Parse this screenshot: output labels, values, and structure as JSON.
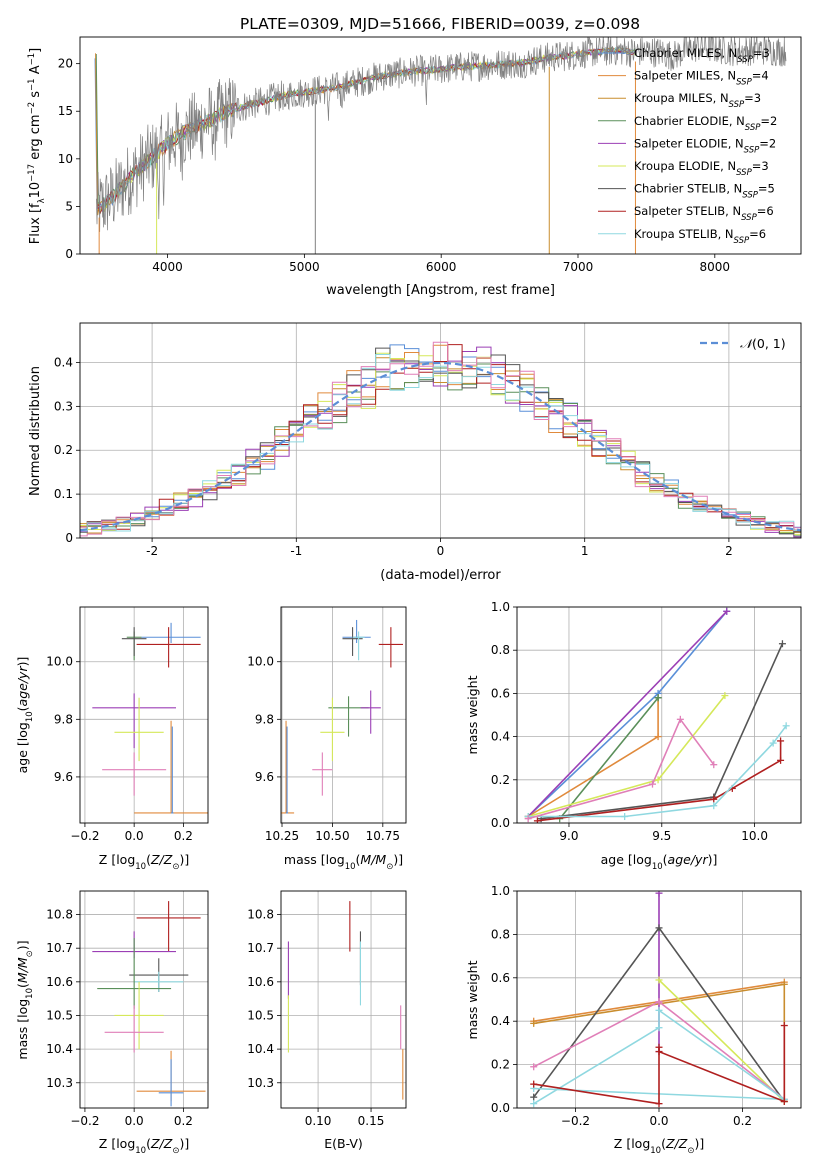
{
  "figure": {
    "title": "PLATE=0309, MJD=51666, FIBERID=0039, z=0.098"
  },
  "colors": {
    "spec_gray": "#808080",
    "grid": "#b0b0b0",
    "normal_dash": "#5b8ed6"
  },
  "chart_data": [
    {
      "id": "spectrum",
      "type": "line",
      "title": "PLATE=0309, MJD=51666, FIBERID=0039, z=0.098",
      "xlabel": "wavelength [Angstrom, rest frame]",
      "ylabel": "Flux [f_λ 10^-17 erg cm^-2 s^-1 A^-1]",
      "xlim": [
        3360,
        8630
      ],
      "ylim": [
        0,
        22.8
      ],
      "xticks": [
        4000,
        5000,
        6000,
        7000,
        8000
      ],
      "yticks": [
        0,
        5,
        10,
        15,
        20
      ],
      "grid": false,
      "legend": "right",
      "observed_continuum": [
        [
          3480,
          4.6
        ],
        [
          3550,
          5.4
        ],
        [
          3600,
          6.0
        ],
        [
          3700,
          7.6
        ],
        [
          3800,
          9.0
        ],
        [
          3900,
          10.3
        ],
        [
          4000,
          11.6
        ],
        [
          4100,
          12.6
        ],
        [
          4200,
          13.3
        ],
        [
          4300,
          14.0
        ],
        [
          4400,
          14.7
        ],
        [
          4500,
          15.2
        ],
        [
          4600,
          15.7
        ],
        [
          4700,
          16.0
        ],
        [
          4800,
          16.5
        ],
        [
          4900,
          16.8
        ],
        [
          5000,
          17.0
        ],
        [
          5100,
          17.2
        ],
        [
          5200,
          17.4
        ],
        [
          5300,
          17.7
        ],
        [
          5400,
          18.1
        ],
        [
          5500,
          18.5
        ],
        [
          5600,
          18.8
        ],
        [
          5700,
          19.0
        ],
        [
          5800,
          19.2
        ],
        [
          5900,
          19.3
        ],
        [
          6000,
          19.4
        ],
        [
          6100,
          19.6
        ],
        [
          6200,
          19.7
        ],
        [
          6300,
          19.8
        ],
        [
          6400,
          19.9
        ],
        [
          6500,
          20.0
        ],
        [
          6600,
          20.1
        ],
        [
          6700,
          20.4
        ],
        [
          6800,
          20.7
        ],
        [
          6900,
          20.8
        ],
        [
          7000,
          21.0
        ],
        [
          7100,
          21.2
        ],
        [
          7200,
          21.3
        ],
        [
          7300,
          21.4
        ],
        [
          7400,
          21.2
        ],
        [
          7500,
          21.3
        ],
        [
          7600,
          21.2
        ],
        [
          7700,
          20.8
        ],
        [
          7800,
          21.5
        ],
        [
          7900,
          21.8
        ],
        [
          8000,
          21.6
        ],
        [
          8100,
          21.4
        ],
        [
          8200,
          21.3
        ],
        [
          8300,
          21.5
        ],
        [
          8400,
          21.4
        ],
        [
          8500,
          21.3
        ],
        [
          8520,
          21.3
        ]
      ],
      "legend_entries": [
        {
          "label": "Chabrier MILES, N",
          "sub": "SSP",
          "tail": "=3",
          "color": "#5a8fd8"
        },
        {
          "label": "Salpeter MILES, N",
          "sub": "SSP",
          "tail": "=4",
          "color": "#e08a3c"
        },
        {
          "label": "Kroupa MILES, N",
          "sub": "SSP",
          "tail": "=3",
          "color": "#c98d2e"
        },
        {
          "label": "Chabrier ELODIE, N",
          "sub": "SSP",
          "tail": "=2",
          "color": "#5a8f5a"
        },
        {
          "label": "Salpeter ELODIE, N",
          "sub": "SSP",
          "tail": "=2",
          "color": "#9b3fb5"
        },
        {
          "label": "Kroupa ELODIE, N",
          "sub": "SSP",
          "tail": "=3",
          "color": "#d5e85a"
        },
        {
          "label": "Chabrier STELIB, N",
          "sub": "SSP",
          "tail": "=5",
          "color": "#555555"
        },
        {
          "label": "Salpeter STELIB, N",
          "sub": "SSP",
          "tail": "=6",
          "color": "#b02020"
        },
        {
          "label": "Kroupa STELIB, N",
          "sub": "SSP",
          "tail": "=6",
          "color": "#8fd8e0"
        }
      ]
    },
    {
      "id": "residual_hist",
      "type": "line",
      "xlabel": "(data-model)/error",
      "ylabel": "Normed distribution",
      "xlim": [
        -2.5,
        2.5
      ],
      "ylim": [
        0,
        0.49
      ],
      "xticks": [
        -2,
        -1,
        0,
        1,
        2
      ],
      "yticks": [
        0.0,
        0.1,
        0.2,
        0.3,
        0.4
      ],
      "grid": true,
      "legend": "top-right",
      "normal_label": "N(0,1)",
      "histogram_colors": [
        "#5a8fd8",
        "#e08a3c",
        "#c98d2e",
        "#5a8f5a",
        "#9b3fb5",
        "#d5e85a",
        "#555555",
        "#b02020",
        "#8fd8e0",
        "#e07fb8"
      ]
    },
    {
      "id": "age_vs_Z",
      "type": "scatter",
      "xlabel": "Z [log10(Z/Z☉)]",
      "ylabel": "age [log10(age/yr)]",
      "xlim": [
        -0.22,
        0.3
      ],
      "ylim": [
        9.44,
        10.19
      ],
      "xticks": [
        -0.2,
        0.0,
        0.2
      ],
      "xtick_labels": [
        "−0.2",
        "0.0",
        "0.2"
      ],
      "yticks": [
        9.6,
        9.8,
        10.0
      ],
      "ytick_labels": [
        "9.6",
        "9.8",
        "10.0"
      ],
      "grid": true,
      "points": [
        {
          "x": 0.15,
          "y": 10.085,
          "xerr": 0.12,
          "yerr_lo": 0.02,
          "yerr_hi": 0.05,
          "color": "#5a8fd8"
        },
        {
          "x": 0.0,
          "y": 10.085,
          "xerr": 0.03,
          "yerr_lo": 0.08,
          "yerr_hi": 0.02,
          "color": "#5a8f5a"
        },
        {
          "x": 0.14,
          "y": 10.06,
          "xerr": 0.13,
          "yerr_lo": 0.08,
          "yerr_hi": 0.06,
          "color": "#b02020"
        },
        {
          "x": 0.0,
          "y": 10.08,
          "xerr": 0.05,
          "yerr_lo": 0.06,
          "yerr_hi": 0.04,
          "color": "#555555"
        },
        {
          "x": 0.0,
          "y": 9.84,
          "xerr": 0.17,
          "yerr_lo": 0.14,
          "yerr_hi": 0.05,
          "color": "#9b3fb5"
        },
        {
          "x": 0.02,
          "y": 9.755,
          "xerr": 0.1,
          "yerr_lo": 0.1,
          "yerr_hi": 0.12,
          "color": "#d5e85a"
        },
        {
          "x": 0.0,
          "y": 9.625,
          "xerr": 0.13,
          "yerr_lo": 0.09,
          "yerr_hi": 0.06,
          "color": "#e07fb8"
        },
        {
          "x": 0.15,
          "y": 9.475,
          "xerr": 0.15,
          "yerr_lo": 0.0,
          "yerr_hi": 0.32,
          "color": "#e08a3c"
        },
        {
          "x": 0.155,
          "y": 9.475,
          "xerr": 0.005,
          "yerr_lo": 0.0,
          "yerr_hi": 0.3,
          "color": "#5a8fd8"
        }
      ]
    },
    {
      "id": "age_vs_mass",
      "type": "scatter",
      "xlabel": "mass [log10(M/M☉)]",
      "ylabel": "",
      "xlim": [
        10.245,
        10.865
      ],
      "ylim": [
        9.44,
        10.19
      ],
      "xticks": [
        10.25,
        10.5,
        10.75
      ],
      "xtick_labels": [
        "10.25",
        "10.50",
        "10.75"
      ],
      "yticks": [
        9.6,
        9.8,
        10.0
      ],
      "ytick_labels": [
        "9.6",
        "9.8",
        "10.0"
      ],
      "grid": true,
      "points": [
        {
          "x": 10.62,
          "y": 10.085,
          "xerr": 0.07,
          "yerr_lo": 0.02,
          "yerr_hi": 0.06,
          "color": "#5a8fd8"
        },
        {
          "x": 10.6,
          "y": 10.08,
          "xerr": 0.05,
          "yerr_lo": 0.06,
          "yerr_hi": 0.04,
          "color": "#555555"
        },
        {
          "x": 10.63,
          "y": 10.085,
          "xerr": 0.03,
          "yerr_lo": 0.08,
          "yerr_hi": 0.02,
          "color": "#8fd8e0"
        },
        {
          "x": 10.79,
          "y": 10.06,
          "xerr": 0.06,
          "yerr_lo": 0.08,
          "yerr_hi": 0.06,
          "color": "#b02020"
        },
        {
          "x": 10.58,
          "y": 9.84,
          "xerr": 0.1,
          "yerr_lo": 0.1,
          "yerr_hi": 0.04,
          "color": "#5a8f5a"
        },
        {
          "x": 10.69,
          "y": 9.84,
          "xerr": 0.05,
          "yerr_lo": 0.09,
          "yerr_hi": 0.06,
          "color": "#9b3fb5"
        },
        {
          "x": 10.5,
          "y": 9.755,
          "xerr": 0.06,
          "yerr_lo": 0.1,
          "yerr_hi": 0.12,
          "color": "#d5e85a"
        },
        {
          "x": 10.45,
          "y": 9.625,
          "xerr": 0.05,
          "yerr_lo": 0.09,
          "yerr_hi": 0.06,
          "color": "#e07fb8"
        },
        {
          "x": 10.27,
          "y": 9.475,
          "xerr": 0.04,
          "yerr_lo": 0.0,
          "yerr_hi": 0.32,
          "color": "#e08a3c"
        },
        {
          "x": 10.275,
          "y": 9.475,
          "xerr": 0.005,
          "yerr_lo": 0.0,
          "yerr_hi": 0.3,
          "color": "#5a8fd8"
        }
      ]
    },
    {
      "id": "weight_vs_age",
      "type": "line",
      "xlabel": "age [log10(age/yr)]",
      "ylabel": "mass weight",
      "xlim": [
        8.72,
        10.25
      ],
      "ylim": [
        0,
        1
      ],
      "xticks": [
        9.0,
        9.5,
        10.0
      ],
      "xtick_labels": [
        "9.0",
        "9.5",
        "10.0"
      ],
      "yticks": [
        0.0,
        0.2,
        0.4,
        0.6,
        0.8,
        1.0
      ],
      "ytick_labels": [
        "0.0",
        "0.2",
        "0.4",
        "0.6",
        "0.8",
        "1.0"
      ],
      "grid": true,
      "series": [
        {
          "color": "#5a8fd8",
          "x": [
            8.78,
            9.48,
            9.85
          ],
          "y": [
            0.03,
            0.6,
            0.98
          ]
        },
        {
          "color": "#e08a3c",
          "x": [
            8.78,
            9.48,
            9.48
          ],
          "y": [
            0.03,
            0.4,
            0.58
          ]
        },
        {
          "color": "#5a8f5a",
          "x": [
            8.95,
            9.48,
            9.48
          ],
          "y": [
            0.02,
            0.58,
            0.58
          ]
        },
        {
          "color": "#9b3fb5",
          "x": [
            8.78,
            9.85
          ],
          "y": [
            0.03,
            0.98
          ]
        },
        {
          "color": "#d5e85a",
          "x": [
            8.78,
            9.48,
            9.84
          ],
          "y": [
            0.03,
            0.2,
            0.59
          ]
        },
        {
          "color": "#555555",
          "x": [
            8.85,
            9.78,
            10.15
          ],
          "y": [
            0.02,
            0.12,
            0.83
          ]
        },
        {
          "color": "#b02020",
          "x": [
            8.83,
            9.78,
            9.88,
            10.14,
            10.14
          ],
          "y": [
            0.01,
            0.11,
            0.16,
            0.29,
            0.38
          ]
        },
        {
          "color": "#8fd8e0",
          "x": [
            8.78,
            9.3,
            9.78,
            10.1,
            10.17
          ],
          "y": [
            0.03,
            0.03,
            0.08,
            0.37,
            0.45
          ]
        },
        {
          "color": "#e07fb8",
          "x": [
            8.78,
            9.45,
            9.6,
            9.78
          ],
          "y": [
            0.02,
            0.18,
            0.48,
            0.27
          ]
        }
      ]
    },
    {
      "id": "mass_vs_Z",
      "type": "scatter",
      "xlabel": "Z [log10(Z/Z☉)]",
      "ylabel": "mass [log10(M/M☉)]",
      "xlim": [
        -0.22,
        0.3
      ],
      "ylim": [
        10.225,
        10.87
      ],
      "xticks": [
        -0.2,
        0.0,
        0.2
      ],
      "xtick_labels": [
        "−0.2",
        "0.0",
        "0.2"
      ],
      "yticks": [
        10.3,
        10.4,
        10.5,
        10.6,
        10.7,
        10.8
      ],
      "ytick_labels": [
        "10.3",
        "10.4",
        "10.5",
        "10.6",
        "10.7",
        "10.8"
      ],
      "grid": true,
      "points": [
        {
          "x": 0.14,
          "y": 10.79,
          "xerr": 0.13,
          "yerr_lo": 0.1,
          "yerr_hi": 0.05,
          "color": "#b02020"
        },
        {
          "x": 0.0,
          "y": 10.69,
          "xerr": 0.17,
          "yerr_lo": 0.02,
          "yerr_hi": 0.06,
          "color": "#9b3fb5"
        },
        {
          "x": 0.1,
          "y": 10.62,
          "xerr": 0.12,
          "yerr_lo": 0.05,
          "yerr_hi": 0.05,
          "color": "#555555"
        },
        {
          "x": 0.1,
          "y": 10.6,
          "xerr": 0.1,
          "yerr_lo": 0.03,
          "yerr_hi": 0.03,
          "color": "#8fd8e0"
        },
        {
          "x": 0.0,
          "y": 10.58,
          "xerr": 0.15,
          "yerr_lo": 0.06,
          "yerr_hi": 0.15,
          "color": "#5a8f5a"
        },
        {
          "x": 0.02,
          "y": 10.5,
          "xerr": 0.1,
          "yerr_lo": 0.1,
          "yerr_hi": 0.1,
          "color": "#d5e85a"
        },
        {
          "x": 0.0,
          "y": 10.45,
          "xerr": 0.12,
          "yerr_lo": 0.06,
          "yerr_hi": 0.08,
          "color": "#e07fb8"
        },
        {
          "x": 0.15,
          "y": 10.275,
          "xerr": 0.14,
          "yerr_lo": 0.03,
          "yerr_hi": 0.12,
          "color": "#e08a3c"
        },
        {
          "x": 0.15,
          "y": 10.27,
          "xerr": 0.05,
          "yerr_lo": 0.04,
          "yerr_hi": 0.1,
          "color": "#5a8fd8"
        }
      ]
    },
    {
      "id": "mass_vs_EBV",
      "type": "scatter",
      "xlabel": "E(B-V)",
      "ylabel": "",
      "xlim": [
        0.065,
        0.183
      ],
      "ylim": [
        10.225,
        10.87
      ],
      "xticks": [
        0.1,
        0.15
      ],
      "xtick_labels": [
        "0.10",
        "0.15"
      ],
      "yticks": [
        10.3,
        10.4,
        10.5,
        10.6,
        10.7,
        10.8
      ],
      "ytick_labels": [
        "10.3",
        "10.4",
        "10.5",
        "10.6",
        "10.7",
        "10.8"
      ],
      "grid": true,
      "points": [
        {
          "x": 0.13,
          "y": 10.77,
          "xerr": 0.0,
          "yerr_lo": 0.08,
          "yerr_hi": 0.07,
          "color": "#b02020"
        },
        {
          "x": 0.14,
          "y": 10.65,
          "xerr": 0.0,
          "yerr_lo": 0.06,
          "yerr_hi": 0.1,
          "color": "#555555"
        },
        {
          "x": 0.14,
          "y": 10.6,
          "xerr": 0.0,
          "yerr_lo": 0.07,
          "yerr_hi": 0.12,
          "color": "#8fd8e0"
        },
        {
          "x": 0.072,
          "y": 10.65,
          "xerr": 0.0,
          "yerr_lo": 0.1,
          "yerr_hi": 0.07,
          "color": "#9b3fb5"
        },
        {
          "x": 0.072,
          "y": 10.47,
          "xerr": 0.0,
          "yerr_lo": 0.08,
          "yerr_hi": 0.09,
          "color": "#d5e85a"
        },
        {
          "x": 0.178,
          "y": 10.45,
          "xerr": 0.0,
          "yerr_lo": 0.05,
          "yerr_hi": 0.08,
          "color": "#e07fb8"
        },
        {
          "x": 0.18,
          "y": 10.3,
          "xerr": 0.0,
          "yerr_lo": 0.05,
          "yerr_hi": 0.1,
          "color": "#e08a3c"
        }
      ]
    },
    {
      "id": "weight_vs_Z",
      "type": "line",
      "xlabel": "Z [log10(Z/Z☉)]",
      "ylabel": "mass weight",
      "xlim": [
        -0.34,
        0.34
      ],
      "ylim": [
        0,
        1
      ],
      "xticks": [
        -0.2,
        0.0,
        0.2
      ],
      "xtick_labels": [
        "−0.2",
        "0.0",
        "0.2"
      ],
      "yticks": [
        0.0,
        0.2,
        0.4,
        0.6,
        0.8,
        1.0
      ],
      "ytick_labels": [
        "0.0",
        "0.2",
        "0.4",
        "0.6",
        "0.8",
        "1.0"
      ],
      "grid": true,
      "series": [
        {
          "color": "#e08a3c",
          "x": [
            -0.3,
            0.3
          ],
          "y": [
            0.4,
            0.58
          ]
        },
        {
          "color": "#c98d2e",
          "x": [
            -0.3,
            0.3,
            0.3
          ],
          "y": [
            0.39,
            0.57,
            0.03
          ]
        },
        {
          "color": "#9b3fb5",
          "x": [
            0.0,
            0.0
          ],
          "y": [
            0.26,
            0.99
          ]
        },
        {
          "color": "#555555",
          "x": [
            -0.3,
            0.0,
            0.3
          ],
          "y": [
            0.05,
            0.83,
            0.03
          ]
        },
        {
          "color": "#d5e85a",
          "x": [
            0.0,
            0.3
          ],
          "y": [
            0.59,
            0.03
          ]
        },
        {
          "color": "#e07fb8",
          "x": [
            -0.3,
            0.0,
            0.3
          ],
          "y": [
            0.19,
            0.49,
            0.04
          ]
        },
        {
          "color": "#8fd8e0",
          "x": [
            -0.3,
            0.0,
            0.0,
            0.3,
            -0.3
          ],
          "y": [
            0.02,
            0.37,
            0.45,
            0.04,
            0.09
          ]
        },
        {
          "color": "#b02020",
          "x": [
            -0.3,
            0.0,
            0.0,
            0.0,
            0.3,
            0.3
          ],
          "y": [
            0.11,
            0.02,
            0.28,
            0.26,
            0.03,
            0.38
          ]
        }
      ]
    }
  ]
}
